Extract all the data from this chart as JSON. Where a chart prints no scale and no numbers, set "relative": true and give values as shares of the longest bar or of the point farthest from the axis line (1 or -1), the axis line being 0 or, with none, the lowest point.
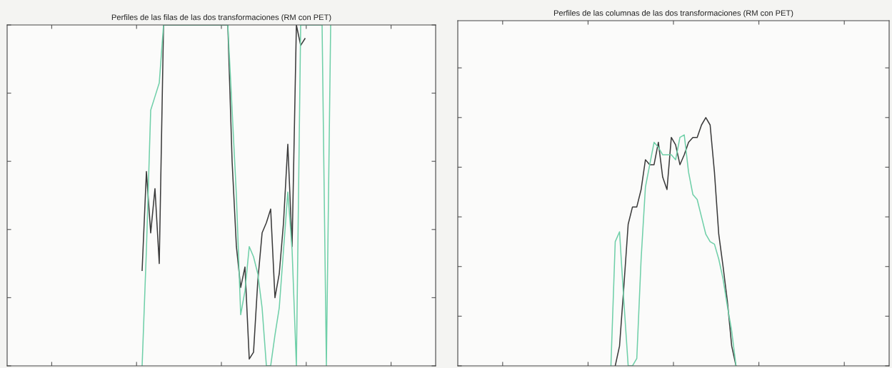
{
  "chart_data": [
    {
      "type": "line",
      "title": "Perfiles de las filas de las dos transformaciones (RM con PET)",
      "relative": true,
      "tick_labels": false,
      "grid": false,
      "categories": [
        null,
        null,
        null,
        null,
        null,
        null,
        null,
        null,
        null,
        null,
        null,
        null,
        null,
        null,
        null,
        null,
        null,
        null,
        null,
        null,
        null,
        null,
        null,
        null,
        null,
        null,
        null,
        null,
        null,
        null,
        null,
        null,
        null,
        null,
        null,
        null,
        null,
        null,
        null,
        null,
        null,
        null,
        null,
        null,
        null,
        null,
        null,
        null,
        null,
        null,
        null,
        null,
        null,
        null,
        null,
        null,
        null,
        null,
        null,
        null,
        null,
        null,
        null,
        null,
        null,
        null,
        null,
        null,
        null,
        null,
        null,
        null,
        null,
        null,
        null,
        null,
        null,
        null,
        null,
        null,
        null,
        null,
        null,
        null,
        null,
        null,
        null,
        null,
        null,
        null,
        null,
        null,
        null,
        null,
        null,
        null,
        null,
        null,
        null,
        null
      ],
      "series": [
        {
          "color": "#3a3a3a",
          "values": [
            null,
            null,
            null,
            null,
            null,
            null,
            null,
            null,
            null,
            null,
            null,
            null,
            null,
            null,
            null,
            null,
            null,
            null,
            null,
            null,
            null,
            null,
            null,
            null,
            null,
            null,
            null,
            null,
            null,
            null,
            null,
            0.28,
            0.57,
            0.39,
            0.52,
            0.3,
            1,
            1,
            1,
            1,
            1,
            1,
            1,
            1,
            1,
            1,
            1,
            1,
            1,
            1,
            1,
            1,
            0.6,
            0.35,
            0.23,
            0.29,
            0.02,
            0.04,
            0.25,
            0.39,
            0.42,
            0.46,
            0.2,
            0.27,
            0.42,
            0.65,
            0.35,
            1,
            0.94,
            0.96,
            null,
            null,
            null,
            null,
            null,
            null,
            null,
            null,
            null,
            null,
            null,
            null,
            null,
            null,
            null,
            null,
            null,
            null,
            null,
            null,
            null,
            null,
            null,
            null,
            null,
            null,
            null,
            null,
            null,
            null
          ]
        },
        {
          "color": "#6fcfa8",
          "values": [
            null,
            null,
            null,
            null,
            null,
            null,
            null,
            null,
            null,
            null,
            null,
            null,
            null,
            null,
            null,
            null,
            null,
            null,
            null,
            null,
            null,
            null,
            null,
            null,
            null,
            null,
            null,
            null,
            null,
            null,
            null,
            0,
            0.34,
            0.75,
            0.79,
            0.83,
            1,
            1,
            1,
            1,
            1,
            1,
            1,
            1,
            1,
            1,
            1,
            1,
            1,
            1,
            1,
            1,
            0.75,
            0.5,
            0.15,
            0.22,
            0.35,
            0.32,
            0.27,
            0.17,
            0,
            0,
            0.09,
            0.17,
            0.34,
            0.51,
            0.34,
            0,
            1,
            1,
            1,
            1,
            1,
            1,
            0,
            1,
            null,
            null,
            null,
            null,
            null,
            null,
            null,
            null,
            null,
            null,
            null,
            null,
            null,
            null,
            null,
            null,
            null,
            null,
            null,
            null,
            null,
            null,
            null,
            null
          ]
        }
      ]
    },
    {
      "type": "line",
      "title": "Perfiles de las columnas de las dos transformaciones (RM con PET)",
      "relative": true,
      "tick_labels": false,
      "grid": false,
      "categories": [
        null,
        null,
        null,
        null,
        null,
        null,
        null,
        null,
        null,
        null,
        null,
        null,
        null,
        null,
        null,
        null,
        null,
        null,
        null,
        null,
        null,
        null,
        null,
        null,
        null,
        null,
        null,
        null,
        null,
        null,
        null,
        null,
        null,
        null,
        null,
        null,
        null,
        null,
        null,
        null,
        null,
        null,
        null,
        null,
        null,
        null,
        null,
        null,
        null,
        null,
        null,
        null,
        null,
        null,
        null,
        null,
        null,
        null,
        null,
        null,
        null,
        null,
        null,
        null,
        null,
        null,
        null,
        null,
        null,
        null,
        null,
        null,
        null,
        null,
        null,
        null,
        null,
        null,
        null,
        null,
        null,
        null,
        null,
        null,
        null,
        null,
        null,
        null,
        null,
        null,
        null,
        null,
        null,
        null,
        null,
        null,
        null,
        null,
        null,
        null
      ],
      "series": [
        {
          "color": "#3a3a3a",
          "values": [
            null,
            null,
            null,
            null,
            null,
            null,
            null,
            null,
            null,
            null,
            null,
            null,
            null,
            null,
            null,
            null,
            null,
            null,
            null,
            null,
            null,
            null,
            null,
            null,
            null,
            null,
            null,
            null,
            null,
            null,
            null,
            null,
            null,
            null,
            null,
            null,
            0,
            0.08,
            0.32,
            0.57,
            0.64,
            0.64,
            0.71,
            0.83,
            0.81,
            0.81,
            0.9,
            0.76,
            0.71,
            0.92,
            0.89,
            0.81,
            0.85,
            0.9,
            0.92,
            0.92,
            0.97,
            1,
            0.97,
            0.78,
            0.53,
            0.4,
            0.26,
            0.08,
            0,
            null,
            null,
            null,
            null,
            null,
            null,
            null,
            null,
            null,
            null,
            null,
            null,
            null,
            null,
            null,
            null,
            null,
            null,
            null,
            null,
            null,
            null,
            null,
            null,
            null,
            null,
            null,
            null,
            null,
            null,
            null,
            null,
            null,
            null,
            null
          ]
        },
        {
          "color": "#6fcfa8",
          "values": [
            null,
            null,
            null,
            null,
            null,
            null,
            null,
            null,
            null,
            null,
            null,
            null,
            null,
            null,
            null,
            null,
            null,
            null,
            null,
            null,
            null,
            null,
            null,
            null,
            null,
            null,
            null,
            null,
            null,
            null,
            null,
            null,
            null,
            null,
            null,
            0,
            0.5,
            0.54,
            0.26,
            0,
            0,
            0.03,
            0.43,
            0.72,
            0.81,
            0.9,
            0.88,
            0.85,
            0.85,
            0.85,
            0.83,
            0.92,
            0.93,
            0.78,
            0.69,
            0.67,
            0.6,
            0.53,
            0.5,
            0.49,
            0.43,
            0.35,
            0.24,
            0.14,
            0,
            null,
            null,
            null,
            null,
            null,
            null,
            null,
            null,
            null,
            null,
            null,
            null,
            null,
            null,
            null,
            null,
            null,
            null,
            null,
            null,
            null,
            null,
            null,
            null,
            null,
            null,
            null,
            null,
            null,
            null,
            null,
            null,
            null,
            null,
            null
          ]
        }
      ]
    }
  ]
}
